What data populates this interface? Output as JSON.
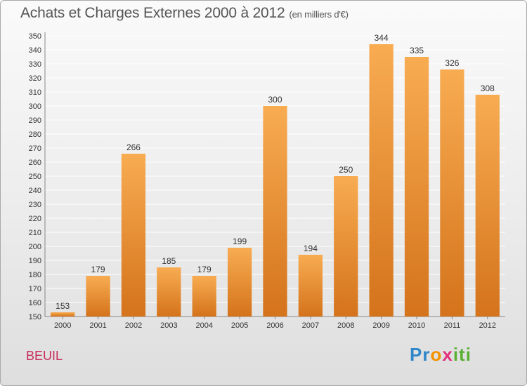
{
  "header": {
    "title": "Achats et Charges Externes 2000 à 2012",
    "unit": "(en milliers d'€)"
  },
  "commune": "BEUIL",
  "logo": {
    "text": "Proxiti"
  },
  "colors": {
    "bar_light": "#f7a94f",
    "bar_dark": "#d8751c",
    "grid": "#ffffff",
    "commune": "#c82d5a"
  },
  "chart_data": {
    "type": "bar",
    "title": "Achats et Charges Externes 2000 à 2012",
    "subtitle": "(en milliers d'€)",
    "xlabel": "",
    "ylabel": "",
    "categories": [
      "2000",
      "2001",
      "2002",
      "2003",
      "2004",
      "2005",
      "2006",
      "2007",
      "2008",
      "2009",
      "2010",
      "2011",
      "2012"
    ],
    "values": [
      153,
      179,
      266,
      185,
      179,
      199,
      300,
      194,
      250,
      344,
      335,
      326,
      308
    ],
    "ylim": [
      150,
      350
    ],
    "ytick_step": 10,
    "grid": true,
    "data_labels": true
  }
}
